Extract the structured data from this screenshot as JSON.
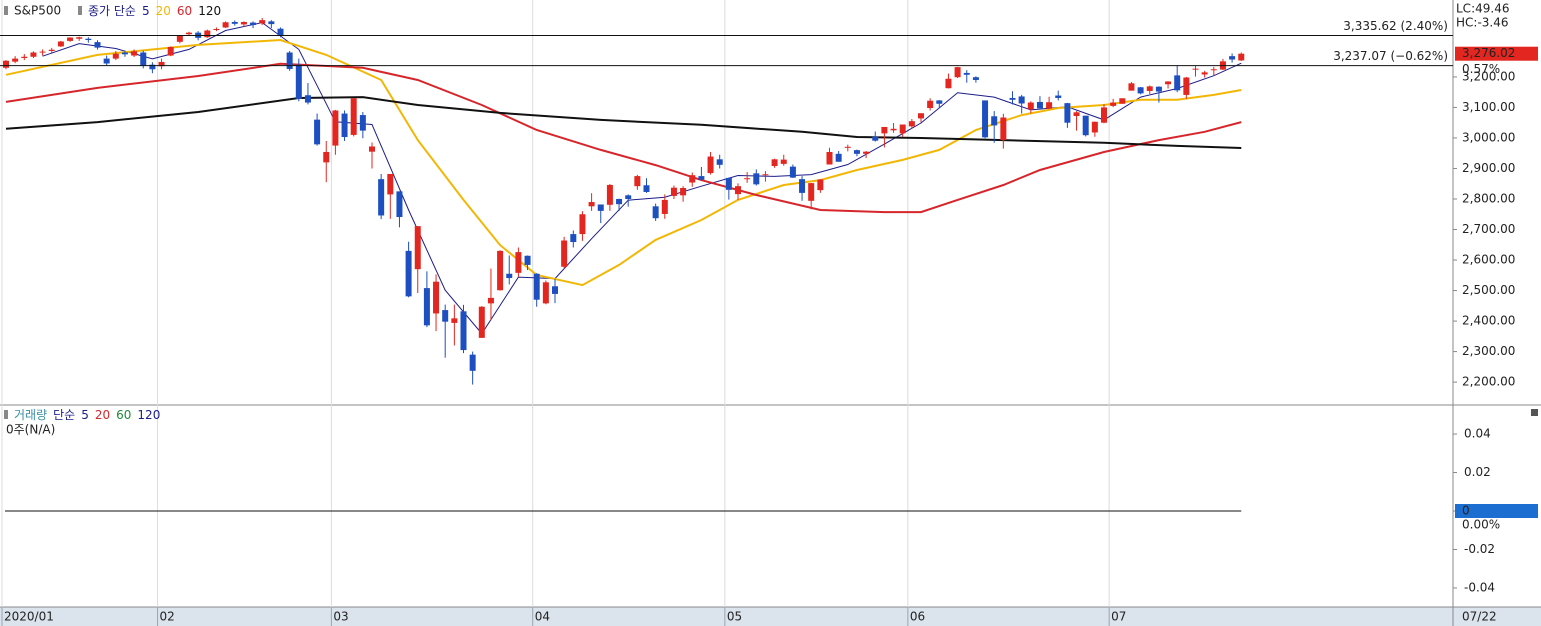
{
  "chart_data": [
    {
      "type": "candlestick",
      "legend": {
        "symbol": "S&P500",
        "ma_label": "종가 단순"
      },
      "categories": [
        "2020/01",
        null,
        null,
        null,
        null,
        null,
        null,
        null,
        null,
        null,
        null,
        null,
        null,
        null,
        null,
        null,
        null,
        "02",
        null,
        null,
        null,
        null,
        null,
        null,
        null,
        null,
        null,
        null,
        null,
        null,
        null,
        null,
        null,
        null,
        null,
        null,
        "03",
        null,
        null,
        null,
        null,
        null,
        null,
        null,
        null,
        null,
        null,
        null,
        null,
        null,
        null,
        null,
        null,
        null,
        null,
        null,
        null,
        null,
        "04",
        null,
        null,
        null,
        null,
        null,
        null,
        null,
        null,
        null,
        null,
        null,
        null,
        null,
        null,
        null,
        null,
        null,
        null,
        null,
        null,
        "05",
        null,
        null,
        null,
        null,
        null,
        null,
        null,
        null,
        null,
        null,
        null,
        null,
        null,
        null,
        null,
        null,
        null,
        null,
        null,
        "06",
        null,
        null,
        null,
        null,
        null,
        null,
        null,
        null,
        null,
        null,
        null,
        null,
        null,
        null,
        null,
        null,
        null,
        null,
        null,
        null,
        null,
        "07",
        null,
        null,
        null,
        null,
        null,
        null,
        null,
        null,
        null,
        null,
        null,
        null,
        null,
        null
      ],
      "candles": [
        [
          3230,
          3255,
          3225,
          3253
        ],
        [
          3250,
          3268,
          3245,
          3260
        ],
        [
          3262,
          3275,
          3255,
          3266
        ],
        [
          3266,
          3284,
          3262,
          3280
        ],
        [
          3280,
          3290,
          3270,
          3283
        ],
        [
          3285,
          3295,
          3280,
          3289
        ],
        [
          3300,
          3318,
          3298,
          3316
        ],
        [
          3318,
          3330,
          3315,
          3329
        ],
        [
          3325,
          3332,
          3318,
          3330
        ],
        [
          3325,
          3330,
          3312,
          3321
        ],
        [
          3314,
          3320,
          3290,
          3296
        ],
        [
          3260,
          3270,
          3238,
          3244
        ],
        [
          3260,
          3285,
          3255,
          3276
        ],
        [
          3280,
          3284,
          3266,
          3274
        ],
        [
          3270,
          3290,
          3265,
          3284
        ],
        [
          3280,
          3286,
          3228,
          3236
        ],
        [
          3240,
          3248,
          3212,
          3225
        ],
        [
          3235,
          3260,
          3225,
          3249
        ],
        [
          3270,
          3300,
          3268,
          3298
        ],
        [
          3315,
          3336,
          3310,
          3334
        ],
        [
          3340,
          3348,
          3335,
          3345
        ],
        [
          3345,
          3350,
          3320,
          3328
        ],
        [
          3330,
          3355,
          3328,
          3352
        ],
        [
          3355,
          3362,
          3350,
          3357
        ],
        [
          3362,
          3382,
          3360,
          3379
        ],
        [
          3380,
          3385,
          3368,
          3374
        ],
        [
          3372,
          3382,
          3365,
          3380
        ],
        [
          3378,
          3382,
          3360,
          3370
        ],
        [
          3375,
          3393,
          3370,
          3386
        ],
        [
          3382,
          3386,
          3360,
          3373
        ],
        [
          3358,
          3362,
          3330,
          3337
        ],
        [
          3280,
          3285,
          3220,
          3226
        ],
        [
          3240,
          3260,
          3120,
          3128
        ],
        [
          3140,
          3180,
          3110,
          3116
        ],
        [
          3060,
          3080,
          2975,
          2979
        ],
        [
          2920,
          2990,
          2855,
          2954
        ],
        [
          2975,
          3092,
          2945,
          3090
        ],
        [
          3080,
          3090,
          2990,
          3003
        ],
        [
          3010,
          3130,
          3005,
          3130
        ],
        [
          3075,
          3085,
          2999,
          3024
        ],
        [
          2955,
          2985,
          2900,
          2972
        ],
        [
          2865,
          2882,
          2734,
          2746
        ],
        [
          2815,
          2882,
          2735,
          2882
        ],
        [
          2825,
          2825,
          2707,
          2741
        ],
        [
          2630,
          2660,
          2478,
          2481
        ],
        [
          2570,
          2711,
          2492,
          2711
        ],
        [
          2508,
          2563,
          2380,
          2386
        ],
        [
          2425,
          2553,
          2367,
          2529
        ],
        [
          2436,
          2454,
          2280,
          2398
        ],
        [
          2394,
          2454,
          2320,
          2409
        ],
        [
          2432,
          2453,
          2295,
          2305
        ],
        [
          2290,
          2300,
          2192,
          2237
        ],
        [
          2345,
          2449,
          2345,
          2447
        ],
        [
          2458,
          2572,
          2403,
          2476
        ],
        [
          2501,
          2632,
          2500,
          2630
        ],
        [
          2555,
          2615,
          2520,
          2541
        ],
        [
          2558,
          2641,
          2545,
          2626
        ],
        [
          2614,
          2615,
          2567,
          2584
        ],
        [
          2555,
          2557,
          2447,
          2470
        ],
        [
          2458,
          2533,
          2455,
          2527
        ],
        [
          2514,
          2538,
          2459,
          2489
        ],
        [
          2578,
          2676,
          2574,
          2664
        ],
        [
          2685,
          2697,
          2641,
          2659
        ],
        [
          2685,
          2760,
          2663,
          2750
        ],
        [
          2776,
          2819,
          2761,
          2790
        ],
        [
          2782,
          2782,
          2721,
          2761
        ],
        [
          2781,
          2849,
          2761,
          2846
        ],
        [
          2800,
          2801,
          2761,
          2783
        ],
        [
          2812,
          2815,
          2775,
          2800
        ],
        [
          2842,
          2879,
          2830,
          2875
        ],
        [
          2845,
          2868,
          2820,
          2823
        ],
        [
          2776,
          2785,
          2728,
          2737
        ],
        [
          2751,
          2815,
          2735,
          2797
        ],
        [
          2810,
          2844,
          2800,
          2837
        ],
        [
          2812,
          2842,
          2791,
          2836
        ],
        [
          2854,
          2887,
          2840,
          2878
        ],
        [
          2875,
          2905,
          2860,
          2863
        ],
        [
          2885,
          2954,
          2880,
          2939
        ],
        [
          2930,
          2945,
          2900,
          2912
        ],
        [
          2869,
          2870,
          2798,
          2830
        ],
        [
          2816,
          2851,
          2797,
          2842
        ],
        [
          2865,
          2888,
          2853,
          2868
        ],
        [
          2884,
          2897,
          2844,
          2848
        ],
        [
          2878,
          2891,
          2857,
          2881
        ],
        [
          2908,
          2932,
          2902,
          2930
        ],
        [
          2915,
          2945,
          2909,
          2929
        ],
        [
          2906,
          2913,
          2869,
          2870
        ],
        [
          2865,
          2875,
          2794,
          2820
        ],
        [
          2794,
          2852,
          2766,
          2852
        ],
        [
          2829,
          2865,
          2820,
          2864
        ],
        [
          2913,
          2968,
          2913,
          2954
        ],
        [
          2948,
          2957,
          2922,
          2922
        ],
        [
          2969,
          2978,
          2956,
          2971
        ],
        [
          2960,
          2962,
          2940,
          2948
        ],
        [
          2948,
          2957,
          2934,
          2955
        ],
        [
          3004,
          3021,
          2988,
          2991
        ],
        [
          3015,
          3036,
          2969,
          3036
        ],
        [
          3025,
          3049,
          3017,
          3030
        ],
        [
          3015,
          3044,
          3004,
          3044
        ],
        [
          3038,
          3062,
          3031,
          3055
        ],
        [
          3064,
          3081,
          3051,
          3081
        ],
        [
          3098,
          3130,
          3090,
          3122
        ],
        [
          3123,
          3124,
          3097,
          3112
        ],
        [
          3163,
          3211,
          3162,
          3194
        ],
        [
          3199,
          3233,
          3196,
          3232
        ],
        [
          3213,
          3222,
          3181,
          3207
        ],
        [
          3199,
          3202,
          3181,
          3190
        ],
        [
          3123,
          3123,
          2999,
          3002
        ],
        [
          3071,
          3088,
          2984,
          3041
        ],
        [
          2993,
          3079,
          2965,
          3067
        ],
        [
          3131,
          3153,
          3110,
          3125
        ],
        [
          3136,
          3141,
          3080,
          3113
        ],
        [
          3094,
          3120,
          3080,
          3116
        ],
        [
          3118,
          3137,
          3098,
          3097
        ],
        [
          3096,
          3135,
          3094,
          3117
        ],
        [
          3139,
          3155,
          3123,
          3131
        ],
        [
          3114,
          3115,
          3033,
          3050
        ],
        [
          3072,
          3088,
          3024,
          3084
        ],
        [
          3073,
          3073,
          3005,
          3009
        ],
        [
          3018,
          3054,
          3004,
          3053
        ],
        [
          3050,
          3111,
          3048,
          3100
        ],
        [
          3105,
          3128,
          3101,
          3116
        ],
        [
          3112,
          3126,
          3112,
          3130
        ],
        [
          3155,
          3183,
          3155,
          3179
        ],
        [
          3166,
          3167,
          3143,
          3146
        ],
        [
          3154,
          3172,
          3144,
          3169
        ],
        [
          3168,
          3169,
          3116,
          3152
        ],
        [
          3176,
          3186,
          3162,
          3185
        ],
        [
          3205,
          3236,
          3150,
          3156
        ],
        [
          3141,
          3200,
          3128,
          3198
        ],
        [
          3225,
          3236,
          3201,
          3227
        ],
        [
          3208,
          3220,
          3198,
          3215
        ],
        [
          3225,
          3233,
          3205,
          3225
        ],
        [
          3224,
          3259,
          3223,
          3251
        ],
        [
          3268,
          3277,
          3247,
          3257
        ],
        [
          3254,
          3280,
          3252,
          3276
        ]
      ],
      "up_color": "#e3261f",
      "down_color": "#1d4fc0",
      "series": [
        {
          "name": "5",
          "color": "#1c1c8c",
          "width": 1,
          "x": [
            4,
            8,
            12,
            16,
            20,
            24,
            28,
            32,
            36,
            40,
            44,
            48,
            52,
            56,
            60,
            64,
            68,
            72,
            76,
            80,
            84,
            88,
            92,
            96,
            100,
            104,
            108,
            112,
            116,
            120,
            124,
            128,
            132,
            135
          ],
          "values": [
            3268,
            3309,
            3293,
            3259,
            3290,
            3352,
            3378,
            3290,
            3053,
            3044,
            2764,
            2501,
            2359,
            2544,
            2539,
            2670,
            2796,
            2806,
            2842,
            2877,
            2874,
            2880,
            2913,
            2980,
            3049,
            3148,
            3134,
            3092,
            3102,
            3059,
            3134,
            3162,
            3204,
            3245
          ]
        },
        {
          "name": "20",
          "color": "#f2b705",
          "width": 2,
          "x": [
            0,
            10,
            21,
            30,
            35,
            41,
            45,
            50,
            54,
            58,
            63,
            67,
            71,
            76,
            80,
            85,
            89,
            93,
            98,
            102,
            106,
            111,
            115,
            120,
            124,
            128,
            132,
            135
          ],
          "values": [
            3207,
            3272,
            3305,
            3321,
            3272,
            3190,
            2993,
            2797,
            2649,
            2551,
            2518,
            2584,
            2666,
            2731,
            2797,
            2846,
            2862,
            2895,
            2928,
            2961,
            3026,
            3075,
            3098,
            3108,
            3125,
            3125,
            3141,
            3157
          ]
        },
        {
          "name": "60",
          "color": "#d7262b",
          "width": 2,
          "x": [
            0,
            10,
            21,
            30,
            39,
            45,
            52,
            58,
            65,
            71,
            76,
            82,
            89,
            96,
            100,
            104,
            109,
            113,
            120,
            126,
            131,
            135
          ],
          "values": [
            3118,
            3164,
            3203,
            3243,
            3230,
            3190,
            3108,
            3026,
            2961,
            2911,
            2862,
            2813,
            2764,
            2757,
            2757,
            2797,
            2846,
            2895,
            2954,
            2993,
            3020,
            3052
          ]
        },
        {
          "name": "120",
          "color": "#111111",
          "width": 2,
          "x": [
            0,
            10,
            21,
            32,
            39,
            45,
            54,
            65,
            76,
            87,
            93,
            100,
            109,
            120,
            128,
            135
          ],
          "values": [
            3030,
            3052,
            3085,
            3131,
            3134,
            3108,
            3082,
            3059,
            3043,
            3020,
            3003,
            3000,
            2993,
            2984,
            2974,
            2967
          ]
        }
      ],
      "ylim": [
        2125,
        3452
      ],
      "yticks": [
        {
          "value": 3200,
          "label": "3,200.00"
        },
        {
          "value": 3100,
          "label": "3,100.00"
        },
        {
          "value": 3000,
          "label": "3,000.00"
        },
        {
          "value": 2900,
          "label": "2,900.00"
        },
        {
          "value": 2800,
          "label": "2,800.00"
        },
        {
          "value": 2700,
          "label": "2,700.00"
        },
        {
          "value": 2600,
          "label": "2,600.00"
        },
        {
          "value": 2500,
          "label": "2,500.00"
        },
        {
          "value": 2400,
          "label": "2,400.00"
        },
        {
          "value": 2300,
          "label": "2,300.00"
        },
        {
          "value": 2200,
          "label": "2,200.00"
        }
      ],
      "ref_lines": [
        {
          "value": 3335.62,
          "label": "3,335.62 (2.40%)"
        },
        {
          "value": 3237.07,
          "label": "3,237.07 (−0.62%)"
        }
      ],
      "last": {
        "value": 3276.02,
        "label": "3,276.02"
      },
      "change": "0.57%",
      "lc": "LC:49.46",
      "hc": "HC:-3.46",
      "date_label": "07/22"
    },
    {
      "type": "volume",
      "legend": {
        "title": "거래량",
        "ma_label": "단순",
        "mas": [
          {
            "name": "5",
            "color": "#1c1c8c"
          },
          {
            "name": "20",
            "color": "#d7262b"
          },
          {
            "name": "60",
            "color": "#1f8a3a"
          },
          {
            "name": "120",
            "color": "#1c1c8c"
          }
        ]
      },
      "note": "0주(N/A)",
      "ylim": [
        -0.0499,
        0.0551
      ],
      "yticks": [
        0.04,
        0.02,
        0,
        -0.02,
        -0.04
      ],
      "zero_pct": "0.00%"
    }
  ]
}
